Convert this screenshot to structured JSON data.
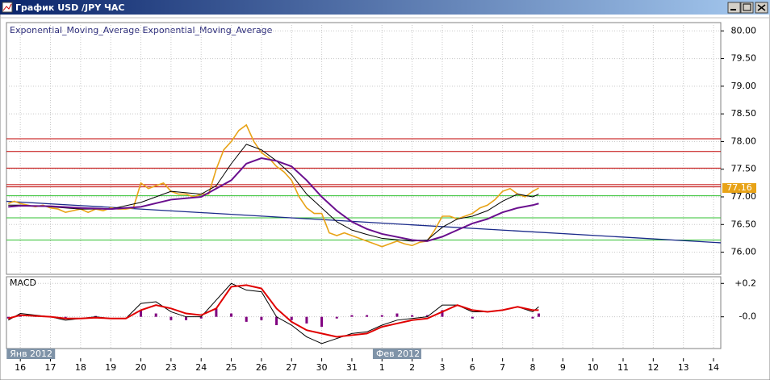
{
  "window": {
    "title": "График USD /JPY ЧАС"
  },
  "chart_data": [
    {
      "type": "line",
      "xlim": [
        -0.46,
        23.24
      ],
      "ylim": [
        75.6,
        80.15
      ],
      "yticks": [
        {
          "value": 80,
          "label": "80.00"
        },
        {
          "value": 79.5,
          "label": "79.50"
        },
        {
          "value": 79,
          "label": "79.00"
        },
        {
          "value": 78.5,
          "label": "78.50"
        },
        {
          "value": 78,
          "label": "78.00"
        },
        {
          "value": 77.5,
          "label": "77.50"
        },
        {
          "value": 77,
          "label": "77.00"
        },
        {
          "value": 76.5,
          "label": "76.50"
        },
        {
          "value": 76,
          "label": "76.00"
        }
      ],
      "xticks": [
        {
          "value": 0,
          "label": "16"
        },
        {
          "value": 1,
          "label": "17"
        },
        {
          "value": 2,
          "label": "18"
        },
        {
          "value": 3,
          "label": "19"
        },
        {
          "value": 4,
          "label": "20"
        },
        {
          "value": 5,
          "label": "23"
        },
        {
          "value": 6,
          "label": "24"
        },
        {
          "value": 7,
          "label": "25"
        },
        {
          "value": 8,
          "label": "26"
        },
        {
          "value": 9,
          "label": "27"
        },
        {
          "value": 10,
          "label": "30"
        },
        {
          "value": 11,
          "label": "31"
        },
        {
          "value": 12,
          "label": "1"
        },
        {
          "value": 13,
          "label": "2"
        },
        {
          "value": 14,
          "label": "3"
        },
        {
          "value": 15,
          "label": "6"
        },
        {
          "value": 16,
          "label": "7"
        },
        {
          "value": 17,
          "label": "8"
        },
        {
          "value": 18,
          "label": "9"
        },
        {
          "value": 19,
          "label": "10"
        },
        {
          "value": 20,
          "label": "11"
        },
        {
          "value": 21,
          "label": "12"
        },
        {
          "value": 22,
          "label": "13"
        },
        {
          "value": 23,
          "label": "14"
        }
      ],
      "month_labels": [
        {
          "value": -0.4,
          "label": "Янв 2012"
        },
        {
          "value": 11.75,
          "label": "Фев 2012"
        }
      ],
      "grid": true,
      "series": [
        {
          "color": "#e8a317",
          "x": [
            -0.4,
            -0.2,
            0,
            0.25,
            0.5,
            0.75,
            1,
            1.25,
            1.5,
            1.75,
            2,
            2.25,
            2.5,
            2.75,
            3,
            3.25,
            3.5,
            3.75,
            4,
            4.25,
            4.5,
            4.75,
            5,
            5.25,
            5.5,
            5.75,
            6,
            6.25,
            6.5,
            6.75,
            7,
            7.25,
            7.5,
            7.75,
            8,
            8.25,
            8.5,
            8.75,
            9,
            9.25,
            9.5,
            9.75,
            10,
            10.25,
            10.5,
            10.75,
            11,
            11.25,
            11.5,
            11.75,
            12,
            12.25,
            12.5,
            12.75,
            13,
            13.25,
            13.5,
            13.75,
            14,
            14.25,
            14.5,
            14.75,
            15,
            15.25,
            15.5,
            15.75,
            16,
            16.25,
            16.5,
            16.75,
            17,
            17.2
          ],
          "values": [
            76.88,
            76.92,
            76.88,
            76.85,
            76.82,
            76.85,
            76.8,
            76.78,
            76.72,
            76.75,
            76.78,
            76.72,
            76.78,
            76.75,
            76.8,
            76.78,
            76.78,
            76.8,
            77.25,
            77.15,
            77.2,
            77.25,
            77.1,
            77.05,
            77.05,
            77,
            77.05,
            77.05,
            77.5,
            77.85,
            78,
            78.2,
            78.3,
            78,
            77.8,
            77.7,
            77.55,
            77.45,
            77.3,
            77,
            76.8,
            76.7,
            76.7,
            76.35,
            76.3,
            76.35,
            76.3,
            76.25,
            76.2,
            76.15,
            76.1,
            76.15,
            76.2,
            76.15,
            76.12,
            76.18,
            76.2,
            76.4,
            76.65,
            76.65,
            76.6,
            76.65,
            76.7,
            76.8,
            76.85,
            76.95,
            77.1,
            77.15,
            77.05,
            77,
            77.1,
            77.16
          ]
        },
        {
          "name": "Exponential_Moving_Average",
          "color": "#000000",
          "x": [
            -0.4,
            0,
            1,
            2,
            3,
            4,
            5,
            6,
            6.5,
            7,
            7.5,
            8,
            8.5,
            9,
            9.5,
            10,
            10.5,
            11,
            11.5,
            12,
            13,
            13.5,
            14,
            14.5,
            15,
            15.5,
            16,
            16.5,
            17,
            17.2
          ],
          "values": [
            76.85,
            76.85,
            76.82,
            76.78,
            76.78,
            76.9,
            77.1,
            77.05,
            77.2,
            77.6,
            77.95,
            77.85,
            77.65,
            77.4,
            77.05,
            76.8,
            76.55,
            76.4,
            76.32,
            76.25,
            76.2,
            76.22,
            76.45,
            76.6,
            76.65,
            76.75,
            76.92,
            77.05,
            77,
            77.05
          ]
        },
        {
          "name": "Exponential_Moving_Average",
          "color": "#6a0f8e",
          "x": [
            -0.4,
            0,
            1,
            2,
            3,
            4,
            5,
            6,
            7,
            7.5,
            8,
            8.5,
            9,
            9.5,
            10,
            10.5,
            11,
            11.5,
            12,
            13,
            13.5,
            14,
            14.5,
            15,
            15.5,
            16,
            16.5,
            17,
            17.2
          ],
          "values": [
            76.82,
            76.84,
            76.83,
            76.8,
            76.78,
            76.82,
            76.95,
            77,
            77.3,
            77.6,
            77.7,
            77.65,
            77.55,
            77.3,
            77,
            76.75,
            76.55,
            76.42,
            76.33,
            76.22,
            76.2,
            76.28,
            76.4,
            76.52,
            76.6,
            76.72,
            76.8,
            76.85,
            76.88
          ]
        }
      ],
      "hlines": [
        {
          "value": 78.05,
          "color": "#c00000"
        },
        {
          "value": 77.82,
          "color": "#c00000"
        },
        {
          "value": 77.52,
          "color": "#c00000"
        },
        {
          "value": 77.22,
          "color": "#c00000"
        },
        {
          "value": 77.18,
          "color": "#c00000"
        },
        {
          "value": 77.02,
          "color": "#30c030"
        },
        {
          "value": 76.62,
          "color": "#30c030"
        },
        {
          "value": 76.22,
          "color": "#30c030"
        }
      ],
      "trendline": {
        "x": [
          -0.46,
          23.24
        ],
        "values": [
          76.92,
          76.17
        ],
        "color": "#1a2a8a"
      }
    },
    {
      "type": "macd",
      "title": "MACD",
      "ylim": [
        -0.19,
        0.24
      ],
      "yticks": [
        {
          "value": 0.2,
          "label": "+0.2"
        },
        {
          "value": 0,
          "label": "-0.0"
        }
      ],
      "x": [
        -0.4,
        0,
        0.5,
        1,
        1.5,
        2,
        2.5,
        3,
        3.5,
        4,
        4.5,
        5,
        5.5,
        6,
        6.5,
        7,
        7.5,
        8,
        8.5,
        9,
        9.5,
        10,
        10.5,
        11,
        11.5,
        12,
        12.5,
        13,
        13.5,
        14,
        14.5,
        15,
        15.5,
        16,
        16.5,
        17,
        17.2
      ],
      "series": [
        {
          "color": "#000000",
          "values": [
            -0.02,
            0.02,
            0.01,
            0,
            -0.02,
            -0.01,
            0,
            -0.01,
            -0.01,
            0.08,
            0.09,
            0.03,
            0,
            0,
            0.1,
            0.2,
            0.16,
            0.15,
            0,
            -0.05,
            -0.12,
            -0.16,
            -0.13,
            -0.1,
            -0.09,
            -0.05,
            -0.02,
            -0.01,
            0,
            0.07,
            0.07,
            0.03,
            0.03,
            0.04,
            0.06,
            0.03,
            0.06
          ]
        },
        {
          "color": "#e00000",
          "values": [
            -0.01,
            0.01,
            0.005,
            0,
            -0.01,
            -0.01,
            -0.005,
            -0.01,
            -0.01,
            0.04,
            0.07,
            0.05,
            0.02,
            0.01,
            0.05,
            0.18,
            0.19,
            0.17,
            0.05,
            -0.03,
            -0.08,
            -0.1,
            -0.12,
            -0.11,
            -0.1,
            -0.06,
            -0.04,
            -0.02,
            -0.01,
            0.03,
            0.07,
            0.04,
            0.03,
            0.04,
            0.06,
            0.04,
            0.04
          ]
        }
      ],
      "histogram": {
        "color": "#800080",
        "values": [
          -0.01,
          0.01,
          0.005,
          0,
          -0.01,
          0,
          0.005,
          0,
          0,
          0.04,
          0.02,
          -0.02,
          -0.02,
          -0.01,
          0.05,
          0.02,
          -0.03,
          -0.02,
          -0.05,
          -0.02,
          -0.04,
          -0.06,
          -0.01,
          0.01,
          0.01,
          0.01,
          0.02,
          0.01,
          0.01,
          0.04,
          0,
          -0.01,
          0,
          0,
          0,
          -0.01,
          0.02
        ]
      }
    }
  ]
}
